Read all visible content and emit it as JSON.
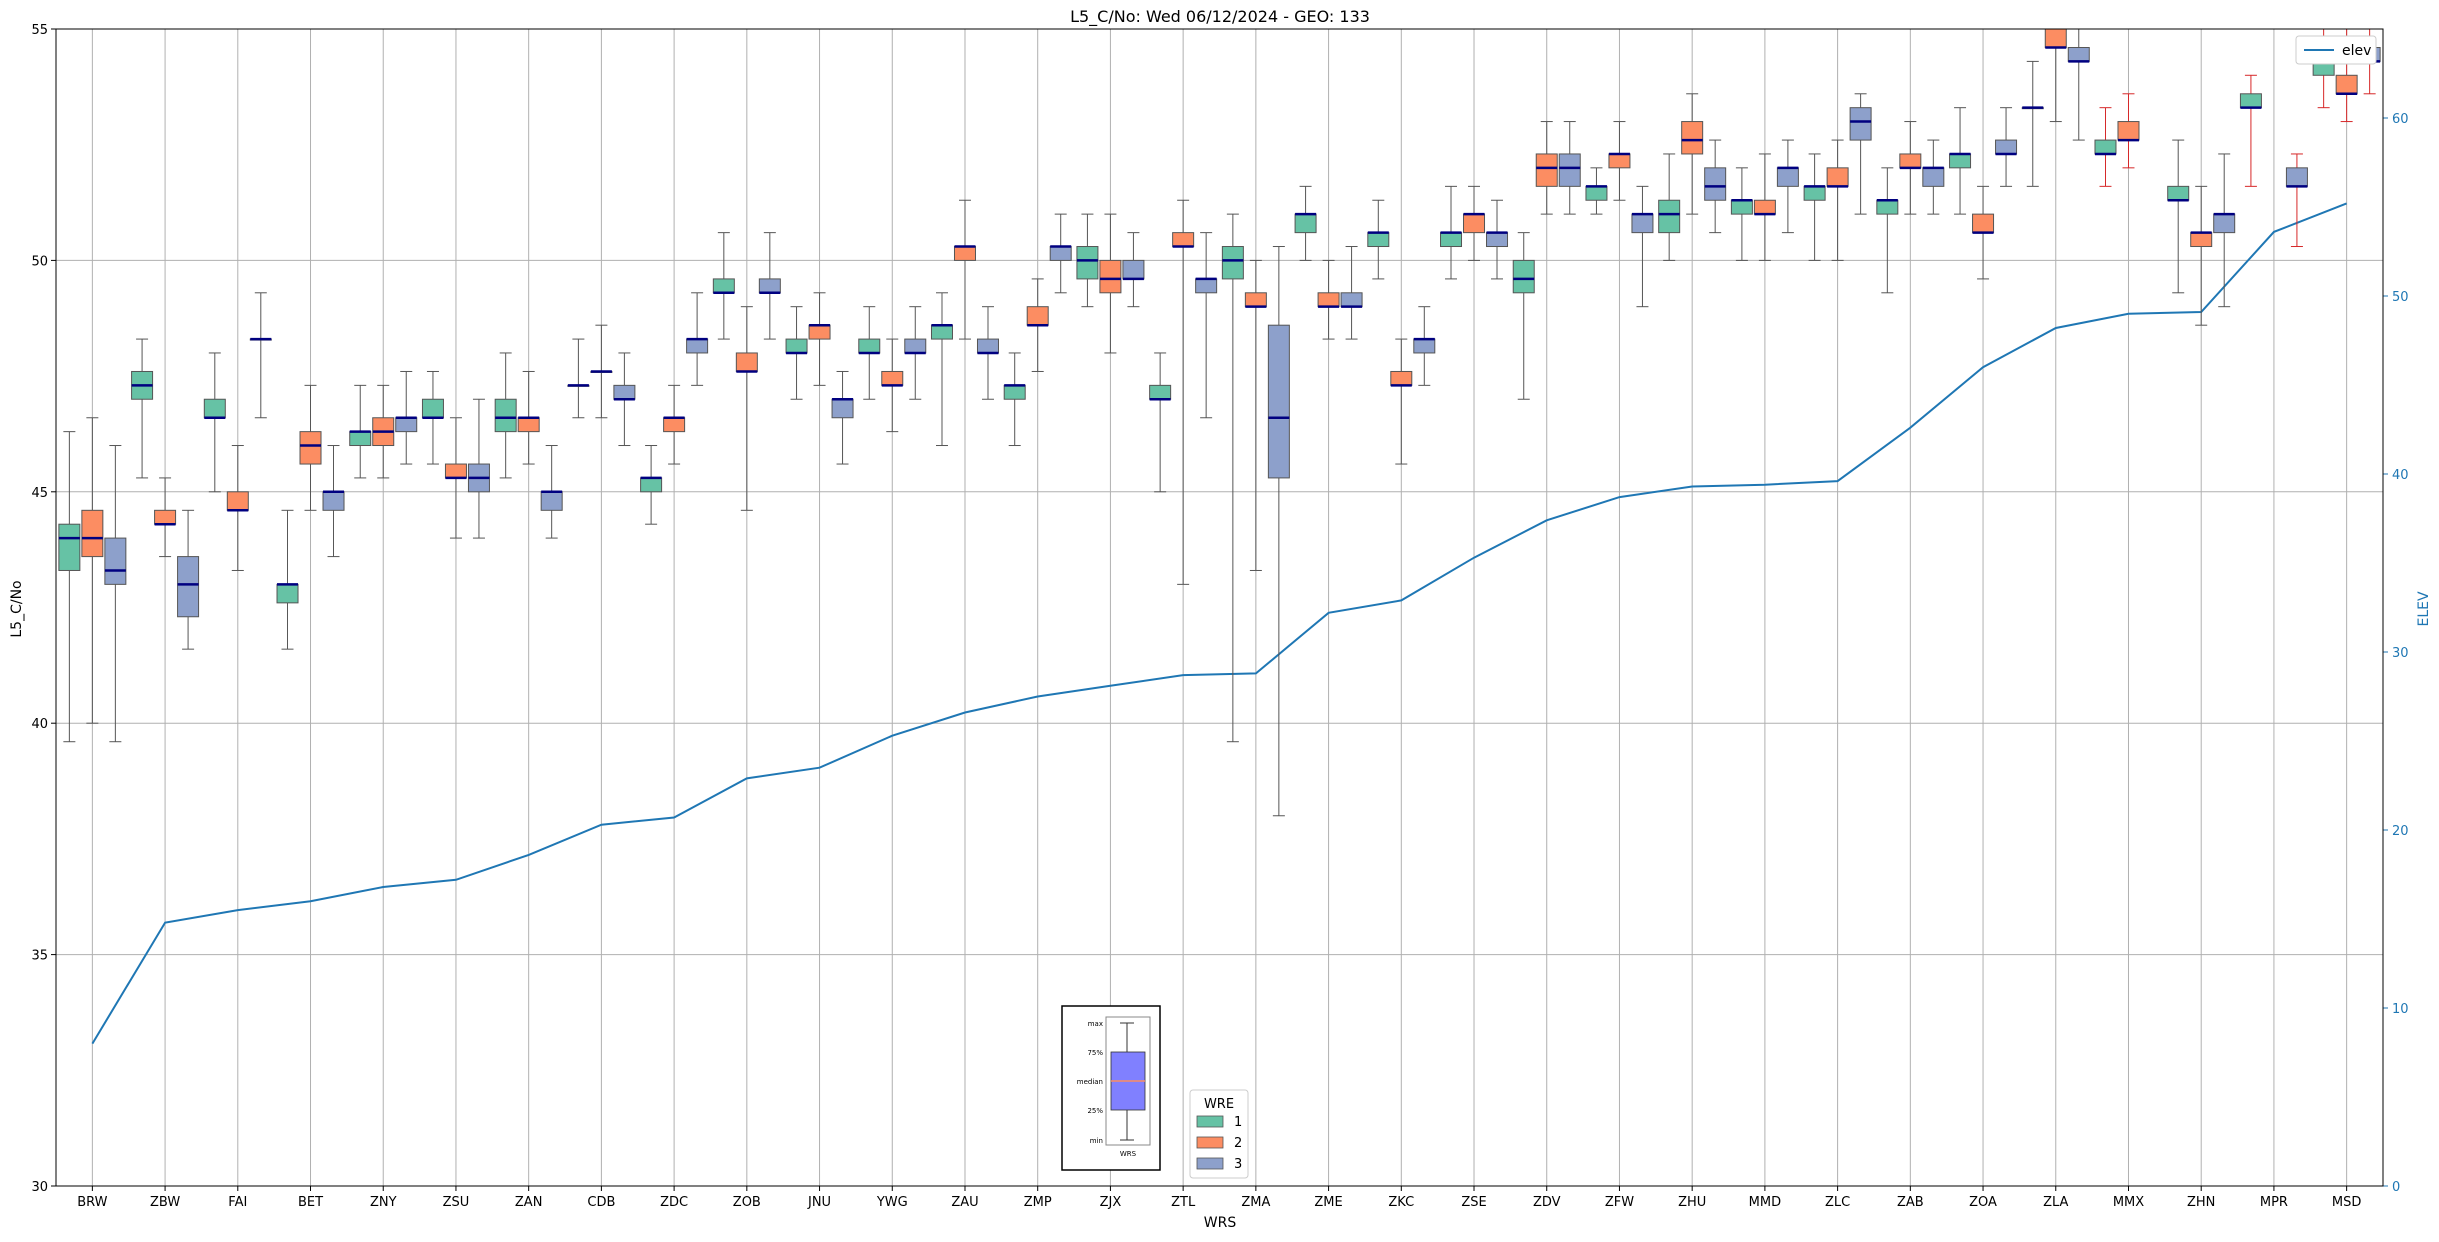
{
  "chart_data": {
    "type": "box",
    "title": "L5_C/No: Wed 06/12/2024 - GEO: 133",
    "xlabel": "WRS",
    "ylabel": "L5_C/No",
    "y2label": "ELEV",
    "ylim": [
      30,
      55
    ],
    "y2lim": [
      0,
      65
    ],
    "yticks": [
      30,
      35,
      40,
      45,
      50,
      55
    ],
    "y2ticks": [
      0,
      10,
      20,
      30,
      40,
      50,
      60
    ],
    "grid": true,
    "categories": [
      "BRW",
      "ZBW",
      "FAI",
      "BET",
      "ZNY",
      "ZSU",
      "ZAN",
      "CDB",
      "ZDC",
      "ZOB",
      "JNU",
      "YWG",
      "ZAU",
      "ZMP",
      "ZJX",
      "ZTL",
      "ZMA",
      "ZME",
      "ZKC",
      "ZSE",
      "ZDV",
      "ZFW",
      "ZHU",
      "MMD",
      "ZLC",
      "ZAB",
      "ZOA",
      "ZLA",
      "MMX",
      "ZHN",
      "MPR",
      "MSD"
    ],
    "wre_legend": {
      "title": "WRE",
      "entries": [
        {
          "label": "1",
          "color": "#66c2a5"
        },
        {
          "label": "2",
          "color": "#fc8d62"
        },
        {
          "label": "3",
          "color": "#8da0cb"
        }
      ],
      "placement": "lower-center"
    },
    "elev_legend": {
      "label": "elev",
      "color": "#1f77b4",
      "placement": "upper-right"
    },
    "key_inset": {
      "labels": [
        "max",
        "75%",
        "median",
        "25%",
        "min"
      ],
      "xlabel": "WRS",
      "color": "#8080ff",
      "median_color": "#fc8d62"
    },
    "elevation": {
      "name": "elev",
      "color": "#1f77b4",
      "values": [
        8,
        14.8,
        15.5,
        16,
        16.8,
        17.2,
        18.6,
        20.3,
        20.7,
        22.9,
        23.5,
        25.3,
        26.6,
        27.5,
        28.1,
        28.7,
        28.8,
        32.2,
        32.9,
        35.3,
        37.4,
        38.7,
        39.3,
        39.4,
        39.6,
        42.6,
        46,
        48.2,
        49,
        49.1,
        53.6,
        55.2
      ]
    },
    "boxes": [
      {
        "cat": "BRW",
        "wre": 1,
        "min": 39.6,
        "q1": 43.3,
        "median": 44.0,
        "q3": 44.3,
        "max": 46.3
      },
      {
        "cat": "BRW",
        "wre": 2,
        "min": 40.0,
        "q1": 43.6,
        "median": 44.0,
        "q3": 44.6,
        "max": 46.6
      },
      {
        "cat": "BRW",
        "wre": 3,
        "min": 39.6,
        "q1": 43.0,
        "median": 43.3,
        "q3": 44.0,
        "max": 46.0
      },
      {
        "cat": "ZBW",
        "wre": 1,
        "min": 45.3,
        "q1": 47.0,
        "median": 47.3,
        "q3": 47.6,
        "max": 48.3
      },
      {
        "cat": "ZBW",
        "wre": 2,
        "min": 43.6,
        "q1": 44.3,
        "median": 44.3,
        "q3": 44.6,
        "max": 45.3
      },
      {
        "cat": "ZBW",
        "wre": 3,
        "min": 41.6,
        "q1": 42.3,
        "median": 43.0,
        "q3": 43.6,
        "max": 44.6
      },
      {
        "cat": "FAI",
        "wre": 1,
        "min": 45.0,
        "q1": 46.6,
        "median": 46.6,
        "q3": 47.0,
        "max": 48.0
      },
      {
        "cat": "FAI",
        "wre": 2,
        "min": 43.3,
        "q1": 44.6,
        "median": 44.6,
        "q3": 45.0,
        "max": 46.0
      },
      {
        "cat": "FAI",
        "wre": 3,
        "min": 46.6,
        "q1": 48.3,
        "median": 48.3,
        "q3": 48.3,
        "max": 49.3
      },
      {
        "cat": "BET",
        "wre": 1,
        "min": 41.6,
        "q1": 42.6,
        "median": 43.0,
        "q3": 43.0,
        "max": 44.6
      },
      {
        "cat": "BET",
        "wre": 2,
        "min": 44.6,
        "q1": 45.6,
        "median": 46.0,
        "q3": 46.3,
        "max": 47.3
      },
      {
        "cat": "BET",
        "wre": 3,
        "min": 43.6,
        "q1": 44.6,
        "median": 45.0,
        "q3": 45.0,
        "max": 46.0
      },
      {
        "cat": "ZNY",
        "wre": 1,
        "min": 45.3,
        "q1": 46.0,
        "median": 46.3,
        "q3": 46.3,
        "max": 47.3
      },
      {
        "cat": "ZNY",
        "wre": 2,
        "min": 45.3,
        "q1": 46.0,
        "median": 46.3,
        "q3": 46.6,
        "max": 47.3
      },
      {
        "cat": "ZNY",
        "wre": 3,
        "min": 45.6,
        "q1": 46.3,
        "median": 46.6,
        "q3": 46.6,
        "max": 47.6
      },
      {
        "cat": "ZSU",
        "wre": 1,
        "min": 45.6,
        "q1": 46.6,
        "median": 46.6,
        "q3": 47.0,
        "max": 47.6
      },
      {
        "cat": "ZSU",
        "wre": 2,
        "min": 44.0,
        "q1": 45.3,
        "median": 45.3,
        "q3": 45.6,
        "max": 46.6
      },
      {
        "cat": "ZSU",
        "wre": 3,
        "min": 44.0,
        "q1": 45.0,
        "median": 45.3,
        "q3": 45.6,
        "max": 47.0
      },
      {
        "cat": "ZAN",
        "wre": 1,
        "min": 45.3,
        "q1": 46.3,
        "median": 46.6,
        "q3": 47.0,
        "max": 48.0
      },
      {
        "cat": "ZAN",
        "wre": 2,
        "min": 45.6,
        "q1": 46.3,
        "median": 46.6,
        "q3": 46.6,
        "max": 47.6
      },
      {
        "cat": "ZAN",
        "wre": 3,
        "min": 44.0,
        "q1": 44.6,
        "median": 45.0,
        "q3": 45.0,
        "max": 46.0
      },
      {
        "cat": "CDB",
        "wre": 1,
        "min": 46.6,
        "q1": 47.3,
        "median": 47.3,
        "q3": 47.3,
        "max": 48.3
      },
      {
        "cat": "CDB",
        "wre": 2,
        "min": 46.6,
        "q1": 47.6,
        "median": 47.6,
        "q3": 47.6,
        "max": 48.6
      },
      {
        "cat": "CDB",
        "wre": 3,
        "min": 46.0,
        "q1": 47.0,
        "median": 47.0,
        "q3": 47.3,
        "max": 48.0
      },
      {
        "cat": "ZDC",
        "wre": 1,
        "min": 44.3,
        "q1": 45.0,
        "median": 45.3,
        "q3": 45.3,
        "max": 46.0
      },
      {
        "cat": "ZDC",
        "wre": 2,
        "min": 45.6,
        "q1": 46.3,
        "median": 46.6,
        "q3": 46.6,
        "max": 47.3
      },
      {
        "cat": "ZDC",
        "wre": 3,
        "min": 47.3,
        "q1": 48.0,
        "median": 48.3,
        "q3": 48.3,
        "max": 49.3
      },
      {
        "cat": "ZOB",
        "wre": 1,
        "min": 48.3,
        "q1": 49.3,
        "median": 49.3,
        "q3": 49.6,
        "max": 50.6
      },
      {
        "cat": "ZOB",
        "wre": 2,
        "min": 44.6,
        "q1": 47.6,
        "median": 47.6,
        "q3": 48.0,
        "max": 49.0
      },
      {
        "cat": "ZOB",
        "wre": 3,
        "min": 48.3,
        "q1": 49.3,
        "median": 49.3,
        "q3": 49.6,
        "max": 50.6
      },
      {
        "cat": "JNU",
        "wre": 1,
        "min": 47.0,
        "q1": 48.0,
        "median": 48.0,
        "q3": 48.3,
        "max": 49.0
      },
      {
        "cat": "JNU",
        "wre": 2,
        "min": 47.3,
        "q1": 48.3,
        "median": 48.6,
        "q3": 48.6,
        "max": 49.3
      },
      {
        "cat": "JNU",
        "wre": 3,
        "min": 45.6,
        "q1": 46.6,
        "median": 47.0,
        "q3": 47.0,
        "max": 47.6
      },
      {
        "cat": "YWG",
        "wre": 1,
        "min": 47.0,
        "q1": 48.0,
        "median": 48.0,
        "q3": 48.3,
        "max": 49.0
      },
      {
        "cat": "YWG",
        "wre": 2,
        "min": 46.3,
        "q1": 47.3,
        "median": 47.3,
        "q3": 47.6,
        "max": 48.3
      },
      {
        "cat": "YWG",
        "wre": 3,
        "min": 47.0,
        "q1": 48.0,
        "median": 48.0,
        "q3": 48.3,
        "max": 49.0
      },
      {
        "cat": "ZAU",
        "wre": 1,
        "min": 46.0,
        "q1": 48.3,
        "median": 48.6,
        "q3": 48.6,
        "max": 49.3
      },
      {
        "cat": "ZAU",
        "wre": 2,
        "min": 48.3,
        "q1": 50.0,
        "median": 50.3,
        "q3": 50.3,
        "max": 51.3
      },
      {
        "cat": "ZAU",
        "wre": 3,
        "min": 47.0,
        "q1": 48.0,
        "median": 48.0,
        "q3": 48.3,
        "max": 49.0
      },
      {
        "cat": "ZMP",
        "wre": 1,
        "min": 46.0,
        "q1": 47.0,
        "median": 47.3,
        "q3": 47.3,
        "max": 48.0
      },
      {
        "cat": "ZMP",
        "wre": 2,
        "min": 47.6,
        "q1": 48.6,
        "median": 48.6,
        "q3": 49.0,
        "max": 49.6
      },
      {
        "cat": "ZMP",
        "wre": 3,
        "min": 49.3,
        "q1": 50.0,
        "median": 50.3,
        "q3": 50.3,
        "max": 51.0
      },
      {
        "cat": "ZJX",
        "wre": 1,
        "min": 49.0,
        "q1": 49.6,
        "median": 50.0,
        "q3": 50.3,
        "max": 51.0
      },
      {
        "cat": "ZJX",
        "wre": 2,
        "min": 48.0,
        "q1": 49.3,
        "median": 49.6,
        "q3": 50.0,
        "max": 51.0
      },
      {
        "cat": "ZJX",
        "wre": 3,
        "min": 49.0,
        "q1": 49.6,
        "median": 49.6,
        "q3": 50.0,
        "max": 50.6
      },
      {
        "cat": "ZTL",
        "wre": 1,
        "min": 45.0,
        "q1": 47.0,
        "median": 47.0,
        "q3": 47.3,
        "max": 48.0
      },
      {
        "cat": "ZTL",
        "wre": 2,
        "min": 43.0,
        "q1": 50.3,
        "median": 50.3,
        "q3": 50.6,
        "max": 51.3
      },
      {
        "cat": "ZTL",
        "wre": 3,
        "min": 46.6,
        "q1": 49.3,
        "median": 49.6,
        "q3": 49.6,
        "max": 50.6
      },
      {
        "cat": "ZMA",
        "wre": 1,
        "min": 39.6,
        "q1": 49.6,
        "median": 50.0,
        "q3": 50.3,
        "max": 51.0
      },
      {
        "cat": "ZMA",
        "wre": 2,
        "min": 43.3,
        "q1": 49.0,
        "median": 49.0,
        "q3": 49.3,
        "max": 50.0
      },
      {
        "cat": "ZMA",
        "wre": 3,
        "min": 38.0,
        "q1": 45.3,
        "median": 46.6,
        "q3": 48.6,
        "max": 50.3
      },
      {
        "cat": "ZME",
        "wre": 1,
        "min": 50.0,
        "q1": 50.6,
        "median": 51.0,
        "q3": 51.0,
        "max": 51.6
      },
      {
        "cat": "ZME",
        "wre": 2,
        "min": 48.3,
        "q1": 49.0,
        "median": 49.0,
        "q3": 49.3,
        "max": 50.0
      },
      {
        "cat": "ZME",
        "wre": 3,
        "min": 48.3,
        "q1": 49.0,
        "median": 49.0,
        "q3": 49.3,
        "max": 50.3
      },
      {
        "cat": "ZKC",
        "wre": 1,
        "min": 49.6,
        "q1": 50.3,
        "median": 50.6,
        "q3": 50.6,
        "max": 51.3
      },
      {
        "cat": "ZKC",
        "wre": 2,
        "min": 45.6,
        "q1": 47.3,
        "median": 47.3,
        "q3": 47.6,
        "max": 48.3
      },
      {
        "cat": "ZKC",
        "wre": 3,
        "min": 47.3,
        "q1": 48.0,
        "median": 48.3,
        "q3": 48.3,
        "max": 49.0
      },
      {
        "cat": "ZSE",
        "wre": 1,
        "min": 49.6,
        "q1": 50.3,
        "median": 50.6,
        "q3": 50.6,
        "max": 51.6
      },
      {
        "cat": "ZSE",
        "wre": 2,
        "min": 50.0,
        "q1": 50.6,
        "median": 51.0,
        "q3": 51.0,
        "max": 51.6
      },
      {
        "cat": "ZSE",
        "wre": 3,
        "min": 49.6,
        "q1": 50.3,
        "median": 50.6,
        "q3": 50.6,
        "max": 51.3
      },
      {
        "cat": "ZDV",
        "wre": 1,
        "min": 47.0,
        "q1": 49.3,
        "median": 49.6,
        "q3": 50.0,
        "max": 50.6
      },
      {
        "cat": "ZDV",
        "wre": 2,
        "min": 51.0,
        "q1": 51.6,
        "median": 52.0,
        "q3": 52.3,
        "max": 53.0
      },
      {
        "cat": "ZDV",
        "wre": 3,
        "min": 51.0,
        "q1": 51.6,
        "median": 52.0,
        "q3": 52.3,
        "max": 53.0
      },
      {
        "cat": "ZFW",
        "wre": 1,
        "min": 51.0,
        "q1": 51.3,
        "median": 51.6,
        "q3": 51.6,
        "max": 52.0
      },
      {
        "cat": "ZFW",
        "wre": 2,
        "min": 51.3,
        "q1": 52.0,
        "median": 52.3,
        "q3": 52.3,
        "max": 53.0
      },
      {
        "cat": "ZFW",
        "wre": 3,
        "min": 49.0,
        "q1": 50.6,
        "median": 51.0,
        "q3": 51.0,
        "max": 51.6
      },
      {
        "cat": "ZHU",
        "wre": 1,
        "min": 50.0,
        "q1": 50.6,
        "median": 51.0,
        "q3": 51.3,
        "max": 52.3
      },
      {
        "cat": "ZHU",
        "wre": 2,
        "min": 51.0,
        "q1": 52.3,
        "median": 52.6,
        "q3": 53.0,
        "max": 53.6
      },
      {
        "cat": "ZHU",
        "wre": 3,
        "min": 50.6,
        "q1": 51.3,
        "median": 51.6,
        "q3": 52.0,
        "max": 52.6
      },
      {
        "cat": "MMD",
        "wre": 1,
        "min": 50.0,
        "q1": 51.0,
        "median": 51.3,
        "q3": 51.3,
        "max": 52.0
      },
      {
        "cat": "MMD",
        "wre": 2,
        "min": 50.0,
        "q1": 51.0,
        "median": 51.0,
        "q3": 51.3,
        "max": 52.3
      },
      {
        "cat": "MMD",
        "wre": 3,
        "min": 50.6,
        "q1": 51.6,
        "median": 52.0,
        "q3": 52.0,
        "max": 52.6
      },
      {
        "cat": "ZLC",
        "wre": 1,
        "min": 50.0,
        "q1": 51.3,
        "median": 51.6,
        "q3": 51.6,
        "max": 52.3
      },
      {
        "cat": "ZLC",
        "wre": 2,
        "min": 50.0,
        "q1": 51.6,
        "median": 51.6,
        "q3": 52.0,
        "max": 52.6
      },
      {
        "cat": "ZLC",
        "wre": 3,
        "min": 51.0,
        "q1": 52.6,
        "median": 53.0,
        "q3": 53.3,
        "max": 53.6
      },
      {
        "cat": "ZAB",
        "wre": 1,
        "min": 49.3,
        "q1": 51.0,
        "median": 51.3,
        "q3": 51.3,
        "max": 52.0
      },
      {
        "cat": "ZAB",
        "wre": 2,
        "min": 51.0,
        "q1": 52.0,
        "median": 52.0,
        "q3": 52.3,
        "max": 53.0
      },
      {
        "cat": "ZAB",
        "wre": 3,
        "min": 51.0,
        "q1": 51.6,
        "median": 52.0,
        "q3": 52.0,
        "max": 52.6
      },
      {
        "cat": "ZOA",
        "wre": 1,
        "min": 51.0,
        "q1": 52.0,
        "median": 52.3,
        "q3": 52.3,
        "max": 53.3
      },
      {
        "cat": "ZOA",
        "wre": 2,
        "min": 49.6,
        "q1": 50.6,
        "median": 50.6,
        "q3": 51.0,
        "max": 51.6
      },
      {
        "cat": "ZOA",
        "wre": 3,
        "min": 51.6,
        "q1": 52.3,
        "median": 52.3,
        "q3": 52.6,
        "max": 53.3
      },
      {
        "cat": "ZLA",
        "wre": 1,
        "min": 51.6,
        "q1": 53.3,
        "median": 53.3,
        "q3": 53.3,
        "max": 54.3
      },
      {
        "cat": "ZLA",
        "wre": 2,
        "min": 53.0,
        "q1": 54.6,
        "median": 54.6,
        "q3": 55.0,
        "max": 55.0
      },
      {
        "cat": "ZLA",
        "wre": 3,
        "min": 52.6,
        "q1": 54.3,
        "median": 54.3,
        "q3": 54.6,
        "max": 55.0
      },
      {
        "cat": "MMX",
        "wre": 1,
        "min": 51.6,
        "q1": 52.3,
        "median": 52.3,
        "q3": 52.6,
        "max": 53.3
      },
      {
        "cat": "MMX",
        "wre": 2,
        "min": 52.0,
        "q1": 52.6,
        "median": 52.6,
        "q3": 53.0,
        "max": 53.6
      },
      {
        "cat": "MMX",
        "wre": 3,
        "min": null,
        "q1": null,
        "median": null,
        "q3": null,
        "max": null
      },
      {
        "cat": "ZHN",
        "wre": 1,
        "min": 49.3,
        "q1": 51.3,
        "median": 51.3,
        "q3": 51.6,
        "max": 52.6
      },
      {
        "cat": "ZHN",
        "wre": 2,
        "min": 48.6,
        "q1": 50.3,
        "median": 50.6,
        "q3": 50.6,
        "max": 51.6
      },
      {
        "cat": "ZHN",
        "wre": 3,
        "min": 49.0,
        "q1": 50.6,
        "median": 51.0,
        "q3": 51.0,
        "max": 52.3
      },
      {
        "cat": "MPR",
        "wre": 1,
        "min": 51.6,
        "q1": 53.3,
        "median": 53.3,
        "q3": 53.6,
        "max": 54.0
      },
      {
        "cat": "MPR",
        "wre": 2,
        "min": null,
        "q1": null,
        "median": null,
        "q3": null,
        "max": null
      },
      {
        "cat": "MPR",
        "wre": 3,
        "min": 50.3,
        "q1": 51.6,
        "median": 51.6,
        "q3": 52.0,
        "max": 52.3
      },
      {
        "cat": "MSD",
        "wre": 1,
        "min": 53.3,
        "q1": 54.0,
        "median": 54.3,
        "q3": 54.3,
        "max": 55.0
      },
      {
        "cat": "MSD",
        "wre": 2,
        "min": 53.0,
        "q1": 53.6,
        "median": 53.6,
        "q3": 54.0,
        "max": 55.0
      },
      {
        "cat": "MSD",
        "wre": 3,
        "min": 53.6,
        "q1": 54.3,
        "median": 54.3,
        "q3": 54.6,
        "max": 55.0
      }
    ]
  }
}
